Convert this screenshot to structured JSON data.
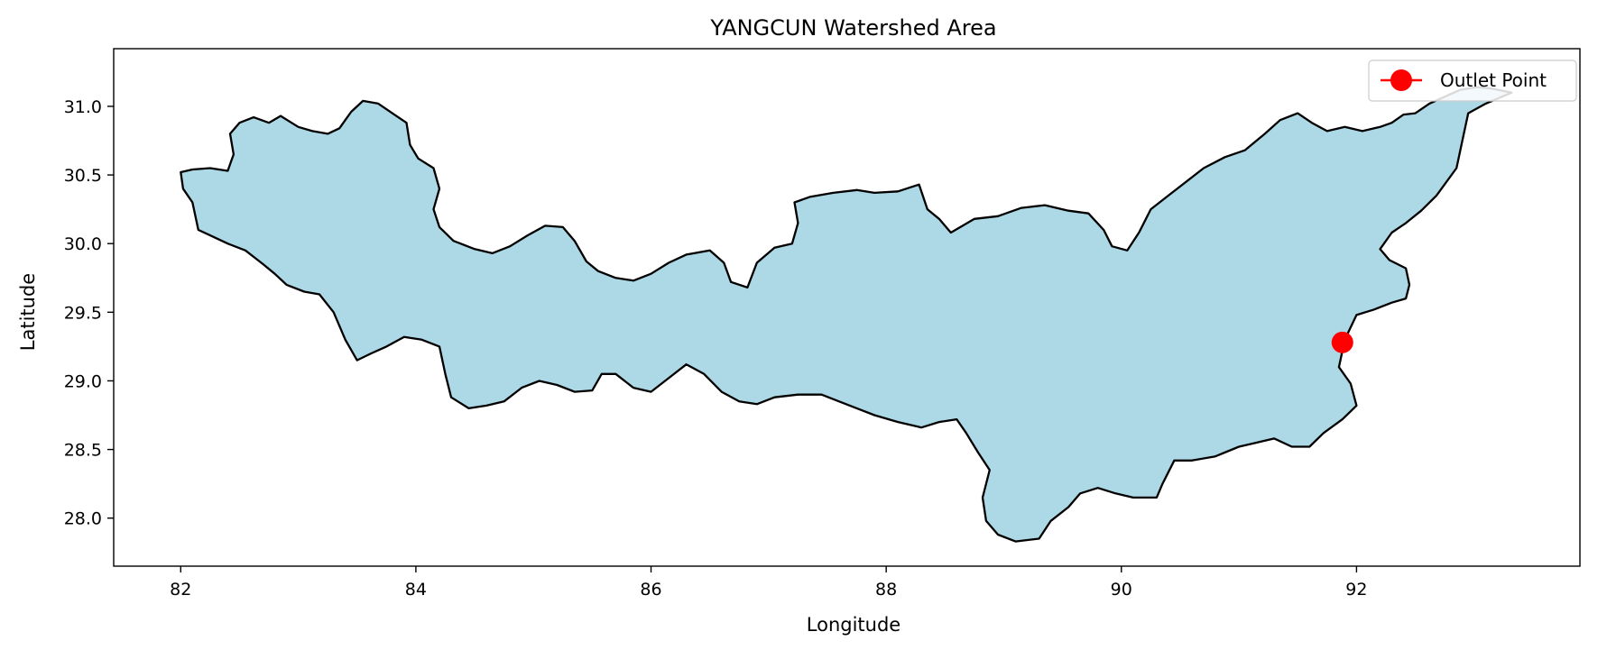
{
  "chart_data": {
    "type": "map",
    "title": "YANGCUN Watershed Area",
    "xlabel": "Longitude",
    "ylabel": "Latitude",
    "xlim": [
      81.43,
      93.9
    ],
    "ylim": [
      27.65,
      31.42
    ],
    "xticks": [
      82,
      84,
      86,
      88,
      90,
      92
    ],
    "yticks": [
      28.0,
      28.5,
      29.0,
      29.5,
      30.0,
      30.5,
      31.0
    ],
    "xtick_labels": [
      "82",
      "84",
      "86",
      "88",
      "90",
      "92"
    ],
    "ytick_labels": [
      "28.0",
      "28.5",
      "29.0",
      "29.5",
      "30.0",
      "30.5",
      "31.0"
    ],
    "grid": false,
    "legend": {
      "position": "top-right",
      "entries": [
        "Outlet Point"
      ]
    },
    "watershed": {
      "fill": "#add8e6",
      "edge": "#000000",
      "boundary": [
        [
          82.0,
          30.52
        ],
        [
          82.1,
          30.54
        ],
        [
          82.25,
          30.55
        ],
        [
          82.4,
          30.53
        ],
        [
          82.45,
          30.65
        ],
        [
          82.42,
          30.8
        ],
        [
          82.5,
          30.88
        ],
        [
          82.62,
          30.92
        ],
        [
          82.75,
          30.88
        ],
        [
          82.85,
          30.93
        ],
        [
          83.0,
          30.85
        ],
        [
          83.12,
          30.82
        ],
        [
          83.25,
          30.8
        ],
        [
          83.35,
          30.84
        ],
        [
          83.45,
          30.96
        ],
        [
          83.55,
          31.04
        ],
        [
          83.68,
          31.02
        ],
        [
          83.8,
          30.95
        ],
        [
          83.92,
          30.88
        ],
        [
          83.95,
          30.72
        ],
        [
          84.02,
          30.62
        ],
        [
          84.15,
          30.55
        ],
        [
          84.2,
          30.4
        ],
        [
          84.15,
          30.25
        ],
        [
          84.2,
          30.12
        ],
        [
          84.32,
          30.02
        ],
        [
          84.5,
          29.96
        ],
        [
          84.65,
          29.93
        ],
        [
          84.8,
          29.98
        ],
        [
          84.95,
          30.06
        ],
        [
          85.1,
          30.13
        ],
        [
          85.25,
          30.12
        ],
        [
          85.35,
          30.02
        ],
        [
          85.45,
          29.87
        ],
        [
          85.55,
          29.8
        ],
        [
          85.7,
          29.75
        ],
        [
          85.85,
          29.73
        ],
        [
          86.0,
          29.78
        ],
        [
          86.15,
          29.86
        ],
        [
          86.3,
          29.92
        ],
        [
          86.5,
          29.95
        ],
        [
          86.62,
          29.86
        ],
        [
          86.68,
          29.72
        ],
        [
          86.82,
          29.68
        ],
        [
          86.9,
          29.86
        ],
        [
          87.05,
          29.97
        ],
        [
          87.2,
          30.0
        ],
        [
          87.25,
          30.15
        ],
        [
          87.22,
          30.3
        ],
        [
          87.35,
          30.34
        ],
        [
          87.55,
          30.37
        ],
        [
          87.75,
          30.39
        ],
        [
          87.9,
          30.37
        ],
        [
          88.1,
          30.38
        ],
        [
          88.28,
          30.43
        ],
        [
          88.35,
          30.25
        ],
        [
          88.45,
          30.18
        ],
        [
          88.55,
          30.08
        ],
        [
          88.65,
          30.13
        ],
        [
          88.75,
          30.18
        ],
        [
          88.95,
          30.2
        ],
        [
          89.15,
          30.26
        ],
        [
          89.35,
          30.28
        ],
        [
          89.55,
          30.24
        ],
        [
          89.72,
          30.22
        ],
        [
          89.85,
          30.1
        ],
        [
          89.92,
          29.98
        ],
        [
          90.05,
          29.95
        ],
        [
          90.15,
          30.08
        ],
        [
          90.25,
          30.25
        ],
        [
          90.4,
          30.35
        ],
        [
          90.55,
          30.45
        ],
        [
          90.7,
          30.55
        ],
        [
          90.88,
          30.63
        ],
        [
          91.05,
          30.68
        ],
        [
          91.22,
          30.8
        ],
        [
          91.35,
          30.9
        ],
        [
          91.5,
          30.95
        ],
        [
          91.62,
          30.88
        ],
        [
          91.75,
          30.82
        ],
        [
          91.9,
          30.85
        ],
        [
          92.05,
          30.82
        ],
        [
          92.2,
          30.85
        ],
        [
          92.3,
          30.88
        ],
        [
          92.4,
          30.94
        ],
        [
          92.5,
          30.95
        ],
        [
          92.62,
          31.02
        ],
        [
          92.75,
          31.07
        ],
        [
          92.88,
          31.12
        ],
        [
          93.02,
          31.14
        ],
        [
          93.15,
          31.13
        ],
        [
          93.32,
          31.1
        ],
        [
          93.1,
          31.02
        ],
        [
          92.95,
          30.95
        ],
        [
          92.9,
          30.75
        ],
        [
          92.85,
          30.55
        ],
        [
          92.68,
          30.35
        ],
        [
          92.55,
          30.24
        ],
        [
          92.42,
          30.15
        ],
        [
          92.3,
          30.08
        ],
        [
          92.2,
          29.96
        ],
        [
          92.28,
          29.88
        ],
        [
          92.42,
          29.82
        ],
        [
          92.45,
          29.7
        ],
        [
          92.42,
          29.6
        ],
        [
          92.3,
          29.57
        ],
        [
          92.15,
          29.52
        ],
        [
          92.0,
          29.48
        ],
        [
          91.9,
          29.3
        ],
        [
          91.85,
          29.1
        ],
        [
          91.95,
          28.98
        ],
        [
          92.0,
          28.82
        ],
        [
          91.88,
          28.72
        ],
        [
          91.72,
          28.62
        ],
        [
          91.6,
          28.52
        ],
        [
          91.45,
          28.52
        ],
        [
          91.3,
          28.58
        ],
        [
          91.15,
          28.55
        ],
        [
          91.0,
          28.52
        ],
        [
          90.8,
          28.45
        ],
        [
          90.6,
          28.42
        ],
        [
          90.45,
          28.42
        ],
        [
          90.35,
          28.25
        ],
        [
          90.3,
          28.15
        ],
        [
          90.1,
          28.15
        ],
        [
          89.95,
          28.18
        ],
        [
          89.8,
          28.22
        ],
        [
          89.65,
          28.18
        ],
        [
          89.55,
          28.08
        ],
        [
          89.4,
          27.98
        ],
        [
          89.3,
          27.85
        ],
        [
          89.1,
          27.83
        ],
        [
          88.95,
          27.88
        ],
        [
          88.85,
          27.98
        ],
        [
          88.82,
          28.15
        ],
        [
          88.88,
          28.35
        ],
        [
          88.78,
          28.48
        ],
        [
          88.68,
          28.62
        ],
        [
          88.6,
          28.72
        ],
        [
          88.45,
          28.7
        ],
        [
          88.3,
          28.66
        ],
        [
          88.1,
          28.7
        ],
        [
          87.9,
          28.75
        ],
        [
          87.75,
          28.8
        ],
        [
          87.6,
          28.85
        ],
        [
          87.45,
          28.9
        ],
        [
          87.25,
          28.9
        ],
        [
          87.05,
          28.88
        ],
        [
          86.9,
          28.83
        ],
        [
          86.75,
          28.85
        ],
        [
          86.6,
          28.92
        ],
        [
          86.45,
          29.05
        ],
        [
          86.3,
          29.12
        ],
        [
          86.15,
          29.02
        ],
        [
          86.0,
          28.92
        ],
        [
          85.85,
          28.95
        ],
        [
          85.7,
          29.05
        ],
        [
          85.58,
          29.05
        ],
        [
          85.5,
          28.93
        ],
        [
          85.35,
          28.92
        ],
        [
          85.2,
          28.97
        ],
        [
          85.05,
          29.0
        ],
        [
          84.9,
          28.95
        ],
        [
          84.75,
          28.85
        ],
        [
          84.6,
          28.82
        ],
        [
          84.45,
          28.8
        ],
        [
          84.3,
          28.88
        ],
        [
          84.25,
          29.05
        ],
        [
          84.2,
          29.25
        ],
        [
          84.05,
          29.3
        ],
        [
          83.9,
          29.32
        ],
        [
          83.75,
          29.25
        ],
        [
          83.62,
          29.2
        ],
        [
          83.5,
          29.15
        ],
        [
          83.4,
          29.3
        ],
        [
          83.3,
          29.5
        ],
        [
          83.18,
          29.63
        ],
        [
          83.05,
          29.65
        ],
        [
          82.9,
          29.7
        ],
        [
          82.8,
          29.78
        ],
        [
          82.7,
          29.85
        ],
        [
          82.55,
          29.95
        ],
        [
          82.4,
          30.0
        ],
        [
          82.25,
          30.06
        ],
        [
          82.15,
          30.1
        ],
        [
          82.1,
          30.3
        ],
        [
          82.02,
          30.4
        ]
      ]
    },
    "series": [
      {
        "name": "Outlet Point",
        "type": "point",
        "color": "#ff0000",
        "x": [
          91.88
        ],
        "y": [
          29.28
        ]
      }
    ]
  }
}
